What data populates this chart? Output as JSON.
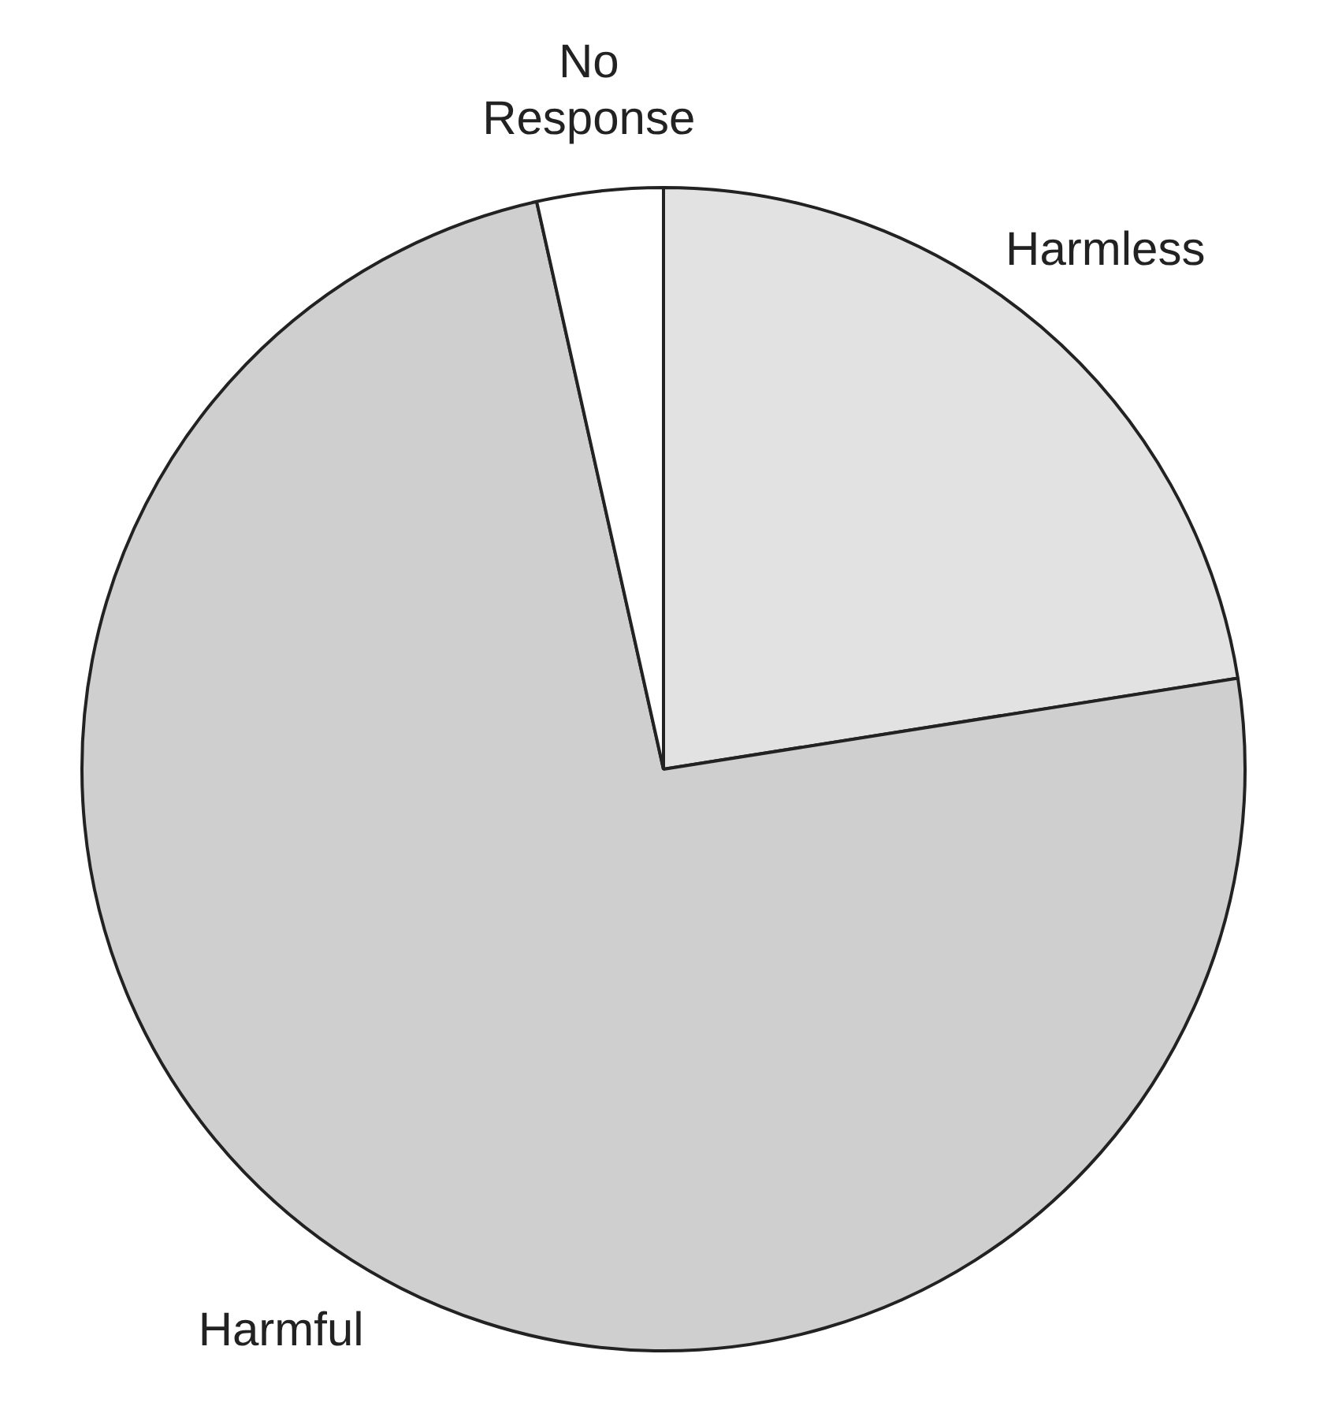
{
  "chart_data": {
    "type": "pie",
    "categories": [
      "Harmless",
      "Harmful",
      "No Response"
    ],
    "values": [
      22.5,
      74,
      3.5
    ],
    "colors": [
      "#e2e2e2",
      "#cfcfcf",
      "#ffffff"
    ],
    "legend": false
  }
}
